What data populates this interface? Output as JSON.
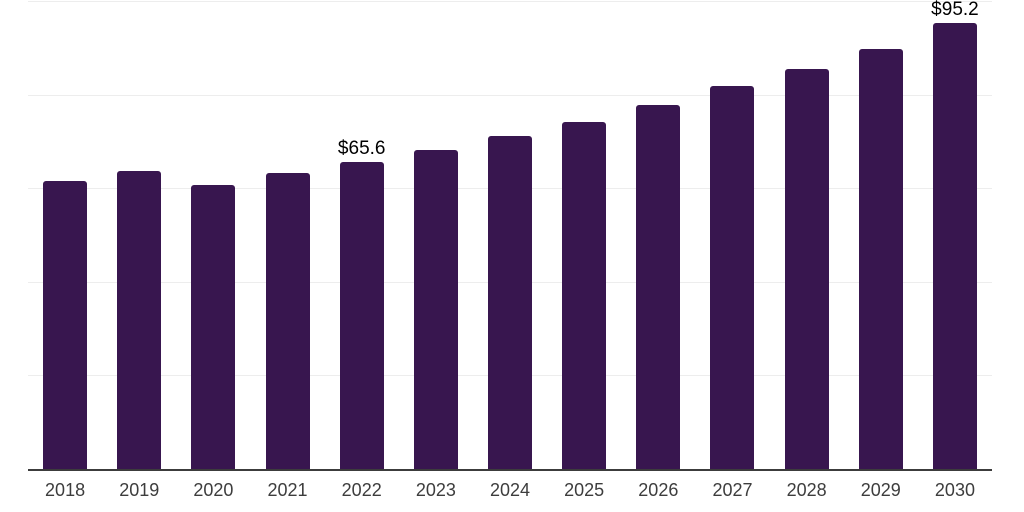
{
  "chart_data": {
    "type": "bar",
    "title": "",
    "xlabel": "",
    "ylabel": "",
    "categories": [
      "2018",
      "2019",
      "2020",
      "2021",
      "2022",
      "2023",
      "2024",
      "2025",
      "2026",
      "2027",
      "2028",
      "2029",
      "2030"
    ],
    "values": [
      61.6,
      63.6,
      60.7,
      63.2,
      65.6,
      68.1,
      71.2,
      74.2,
      77.8,
      81.8,
      85.4,
      89.8,
      95.2
    ],
    "data_labels": [
      "",
      "",
      "",
      "",
      "$65.6",
      "",
      "",
      "",
      "",
      "",
      "",
      "",
      "$95.2"
    ],
    "ylim": [
      0,
      100
    ],
    "gridline_values": [
      20,
      40,
      60,
      80,
      100
    ],
    "grid": "horizontal",
    "legend": "none",
    "bar_corner_radius_px": 3
  },
  "colors": {
    "bar": "#38164f",
    "gridline": "#ededed",
    "axis_line": "#3c3c3c",
    "tick_label": "#3d3d3d",
    "value_label": "#000000",
    "background": "#ffffff"
  }
}
